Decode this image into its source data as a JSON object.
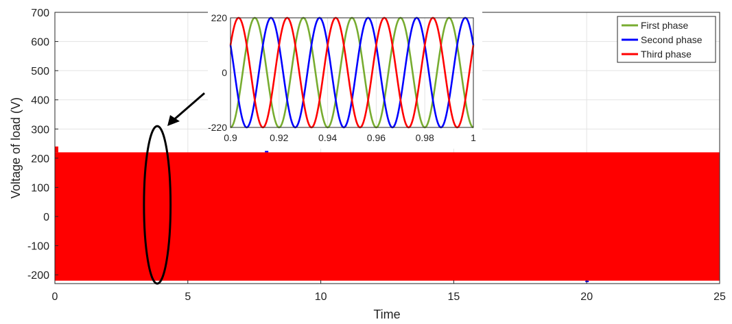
{
  "chart_data": [
    {
      "type": "line",
      "title": "",
      "xlabel": "Time",
      "ylabel": "Voltage of load (V)",
      "xlim": [
        0,
        25
      ],
      "ylim": [
        -230,
        700
      ],
      "xticks": [
        0,
        5,
        10,
        15,
        20,
        25
      ],
      "yticks": [
        -200,
        -100,
        0,
        100,
        200,
        300,
        400,
        500,
        600,
        700
      ],
      "grid": true,
      "legend_position": "top-right",
      "envelope": {
        "upper": 220,
        "lower": -220
      },
      "transients": [
        {
          "x": 0.05,
          "y": 240
        },
        {
          "x": 7.95,
          "y": 225
        },
        {
          "x": 20.0,
          "y": -225
        }
      ],
      "series": [
        {
          "name": "First phase",
          "color": "#77ac30",
          "amplitude": 220,
          "frequency_hz": 50,
          "phase_deg": -90
        },
        {
          "name": "Second phase",
          "color": "#0000ff",
          "amplitude": 220,
          "frequency_hz": 50,
          "phase_deg": 150
        },
        {
          "name": "Third phase",
          "color": "#ff0000",
          "amplitude": 220,
          "frequency_hz": 50,
          "phase_deg": 30
        }
      ],
      "annotation": {
        "type": "ellipse",
        "center": [
          3.85,
          40
        ],
        "rx_data": 0.5,
        "ry_data": 270,
        "note": "zoom region"
      }
    },
    {
      "type": "line",
      "title": "",
      "xlim": [
        0.9,
        1.0
      ],
      "ylim": [
        -220,
        220
      ],
      "xticks": [
        0.9,
        0.92,
        0.94,
        0.96,
        0.98,
        1
      ],
      "xtick_labels": [
        "0.9",
        "0.92",
        "0.94",
        "0.96",
        "0.98",
        "1"
      ],
      "yticks": [
        -220,
        0,
        220
      ],
      "ytick_labels": [
        "-220",
        "0",
        "220"
      ],
      "grid": true
    }
  ],
  "legend": {
    "items": [
      {
        "label": "First phase",
        "color": "#77ac30"
      },
      {
        "label": "Second phase",
        "color": "#0000ff"
      },
      {
        "label": "Third phase",
        "color": "#ff0000"
      }
    ]
  }
}
